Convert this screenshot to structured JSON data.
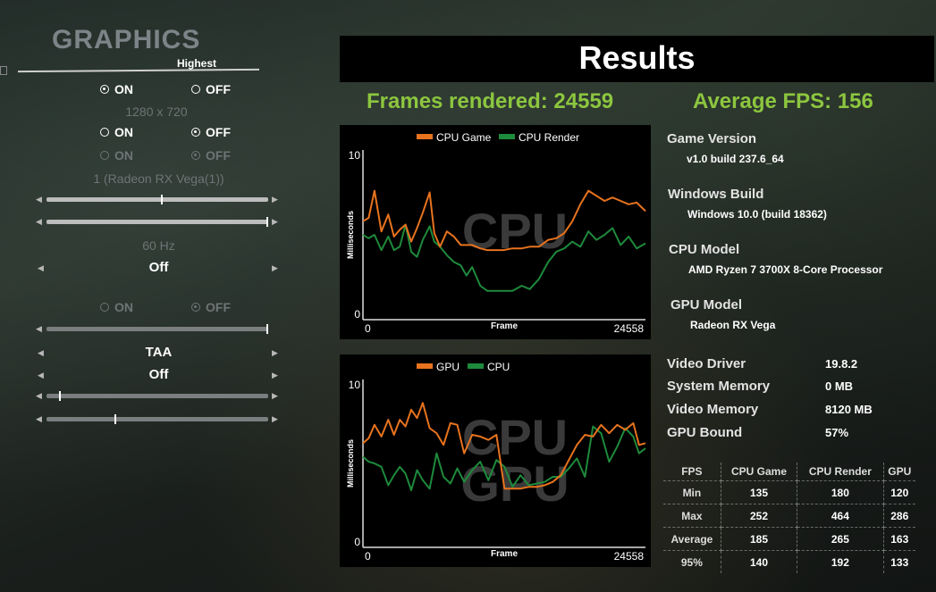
{
  "settings": {
    "title": "GRAPHICS",
    "quality_preset": "Highest",
    "on_label": "ON",
    "off_label": "OFF",
    "resolution": "1280 x 720",
    "gpu_count": "1 (Radeon RX Vega(1))",
    "refresh_rate": "60 Hz",
    "option_off_1": "Off",
    "anti_aliasing": "TAA",
    "option_off_2": "Off"
  },
  "results": {
    "title": "Results",
    "frames_rendered": "Frames rendered: 24559",
    "average_fps": "Average FPS: 156"
  },
  "info": {
    "game_version_label": "Game Version",
    "game_version": "v1.0 build 237.6_64",
    "windows_build_label": "Windows Build",
    "windows_build": "Windows 10.0 (build 18362)",
    "cpu_model_label": "CPU Model",
    "cpu_model": "AMD Ryzen 7 3700X 8-Core Processor",
    "gpu_model_label": "GPU Model",
    "gpu_model": "Radeon RX Vega"
  },
  "stats": [
    {
      "label": "Video Driver",
      "value": "19.8.2"
    },
    {
      "label": "System Memory",
      "value": "0 MB"
    },
    {
      "label": "Video Memory",
      "value": "8120 MB"
    },
    {
      "label": "GPU Bound",
      "value": "57%"
    }
  ],
  "fps_table": {
    "headers": [
      "FPS",
      "CPU Game",
      "CPU Render",
      "GPU"
    ],
    "rows": [
      [
        "Min",
        "135",
        "180",
        "120"
      ],
      [
        "Max",
        "252",
        "464",
        "286"
      ],
      [
        "Average",
        "185",
        "265",
        "163"
      ],
      [
        "95%",
        "140",
        "192",
        "133"
      ]
    ]
  },
  "chart_data": [
    {
      "type": "line",
      "watermark": "CPU",
      "ylabel": "Milliseconds",
      "xlabel": "Frame",
      "x_ticks": [
        "0",
        "24558"
      ],
      "y_ticks": [
        "10",
        "0"
      ],
      "xlim": [
        0,
        24558
      ],
      "ylim": [
        0,
        10
      ],
      "colors": {
        "CPU Game": "#e8731e",
        "CPU Render": "#1e8a3c"
      },
      "series": [
        {
          "name": "CPU Game",
          "x": [
            0,
            500,
            1000,
            1600,
            2200,
            2700,
            3200,
            3700,
            4200,
            4700,
            5200,
            5800,
            6200,
            6700,
            7300,
            7900,
            8500,
            9000,
            9500,
            10200,
            10800,
            11500,
            12200,
            13000,
            13800,
            14500,
            15300,
            16100,
            16800,
            17500,
            18200,
            18900,
            19600,
            20300,
            21000,
            21700,
            22400,
            23100,
            23800,
            24558
          ],
          "y": [
            5.8,
            6.0,
            7.6,
            5.2,
            6.2,
            4.9,
            5.3,
            5.6,
            4.6,
            5.4,
            6.3,
            7.5,
            5.1,
            4.3,
            5.2,
            4.9,
            4.4,
            4.4,
            4.4,
            4.2,
            4.1,
            4.1,
            4.1,
            4.2,
            4.2,
            4.3,
            4.3,
            4.7,
            4.8,
            5.1,
            5.8,
            6.8,
            7.6,
            7.3,
            7.0,
            7.2,
            7.0,
            6.8,
            6.9,
            6.4
          ]
        },
        {
          "name": "CPU Render",
          "x": [
            0,
            500,
            1000,
            1600,
            2200,
            2700,
            3200,
            3700,
            4200,
            4700,
            5200,
            5800,
            6200,
            6700,
            7300,
            7900,
            8500,
            9000,
            9500,
            10200,
            10800,
            11500,
            12200,
            13000,
            13800,
            14500,
            15300,
            16100,
            16800,
            17500,
            18200,
            18900,
            19600,
            20300,
            21000,
            21700,
            22400,
            23100,
            23800,
            24558
          ],
          "y": [
            5.0,
            4.8,
            5.0,
            4.1,
            4.9,
            4.1,
            4.3,
            5.6,
            4.0,
            3.7,
            4.7,
            5.5,
            4.6,
            4.3,
            3.8,
            3.4,
            3.2,
            2.6,
            3.1,
            2.0,
            1.7,
            1.7,
            1.7,
            1.7,
            2.0,
            1.8,
            2.4,
            3.4,
            4.0,
            4.2,
            4.6,
            4.3,
            5.2,
            4.7,
            5.0,
            5.4,
            4.4,
            4.9,
            4.2,
            4.5
          ]
        }
      ]
    },
    {
      "type": "line",
      "watermark": "CPU GPU",
      "ylabel": "Milliseconds",
      "xlabel": "Frame",
      "x_ticks": [
        "0",
        "24558"
      ],
      "y_ticks": [
        "10",
        "0"
      ],
      "xlim": [
        0,
        24558
      ],
      "ylim": [
        0,
        10
      ],
      "colors": {
        "GPU": "#e8731e",
        "CPU": "#1e8a3c"
      },
      "series": [
        {
          "name": "GPU",
          "x": [
            0,
            500,
            1000,
            1600,
            2200,
            2700,
            3200,
            3700,
            4200,
            4700,
            5200,
            5800,
            6400,
            7000,
            7600,
            8200,
            8800,
            9500,
            10200,
            10900,
            11600,
            12300,
            13000,
            13700,
            14400,
            15100,
            15800,
            16500,
            17200,
            17900,
            18600,
            19300,
            20000,
            20700,
            21400,
            22100,
            22800,
            23500,
            24000,
            24558
          ],
          "y": [
            6.2,
            6.5,
            7.3,
            6.6,
            7.6,
            6.7,
            7.6,
            7.2,
            8.2,
            7.7,
            8.6,
            7.1,
            6.8,
            6.1,
            7.4,
            7.3,
            5.6,
            6.7,
            6.6,
            6.4,
            6.7,
            3.5,
            3.5,
            3.5,
            3.6,
            3.6,
            3.7,
            3.9,
            4.3,
            5.2,
            6.1,
            6.7,
            6.6,
            7.3,
            6.8,
            7.3,
            7.0,
            7.4,
            6.1,
            6.2
          ]
        },
        {
          "name": "CPU",
          "x": [
            0,
            500,
            1000,
            1600,
            2200,
            2700,
            3200,
            3700,
            4200,
            4700,
            5200,
            5800,
            6400,
            7000,
            7600,
            8200,
            8800,
            9500,
            10200,
            10900,
            11600,
            12300,
            13000,
            13700,
            14400,
            15100,
            15800,
            16500,
            17200,
            17900,
            18600,
            19300,
            20000,
            20700,
            21400,
            22100,
            22800,
            23500,
            24000,
            24558
          ],
          "y": [
            5.4,
            5.1,
            5.0,
            4.8,
            3.7,
            4.3,
            4.8,
            4.4,
            3.4,
            4.6,
            4.0,
            3.5,
            5.6,
            4.2,
            3.8,
            4.7,
            3.9,
            4.6,
            5.1,
            4.0,
            5.2,
            4.8,
            3.6,
            4.3,
            3.7,
            3.8,
            3.9,
            4.2,
            4.2,
            4.7,
            5.3,
            4.2,
            7.2,
            6.8,
            5.1,
            6.0,
            7.1,
            6.6,
            5.6,
            5.9
          ]
        }
      ]
    }
  ]
}
